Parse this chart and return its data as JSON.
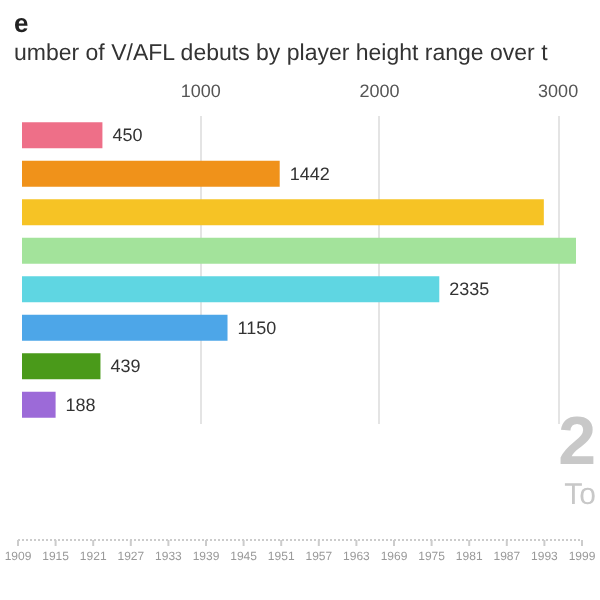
{
  "chart_data": {
    "type": "bar",
    "orientation": "horizontal",
    "title": "e",
    "subtitle": "umber of V/AFL debuts by player height range over t",
    "categories": [
      null,
      null,
      null,
      null,
      null,
      null,
      null,
      null
    ],
    "values": [
      450,
      1442,
      2920,
      3100,
      2335,
      1150,
      439,
      188
    ],
    "colors": [
      "#ee6f88",
      "#f0921a",
      "#f6c325",
      "#a3e39b",
      "#5fd6e2",
      "#4da6e8",
      "#4a9a1a",
      "#9c6ad8"
    ],
    "value_labels": [
      "450",
      "1442",
      null,
      null,
      "2335",
      "1150",
      "439",
      "188"
    ],
    "xlim": [
      0,
      3100
    ],
    "xticks": [
      1000,
      2000,
      3000
    ],
    "grid": "x",
    "annotations": [
      "2",
      "To",
      "1909",
      "1915",
      "1921",
      "1927",
      "1933",
      "1939",
      "1945",
      "1951",
      "1957",
      "1963",
      "1969",
      "1975",
      "1981",
      "1987",
      "1993",
      "1999"
    ]
  }
}
